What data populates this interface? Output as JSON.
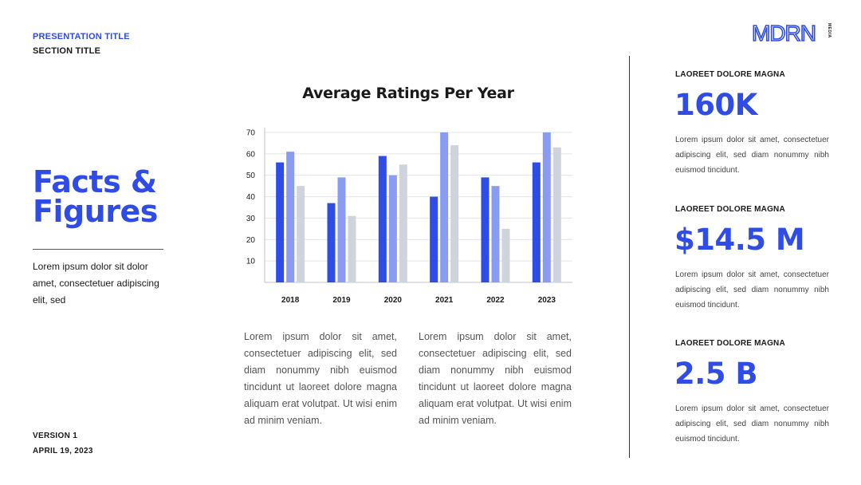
{
  "header": {
    "presentation_title": "PRESENTATION TITLE",
    "section_title": "SECTION TITLE",
    "logo_text": "MDRN",
    "logo_subtext": "MEDIA"
  },
  "left": {
    "heading_line1": "Facts &",
    "heading_line2": "Figures",
    "intro": "Lorem ipsum dolor sit dolor amet, consectetuer adipiscing elit, sed"
  },
  "footer": {
    "version": "VERSION 1",
    "date": "APRIL 19, 2023"
  },
  "chart_data": {
    "type": "bar",
    "title": "Average Ratings Per Year",
    "categories": [
      "2018",
      "2019",
      "2020",
      "2021",
      "2022",
      "2023"
    ],
    "series": [
      {
        "values": [
          56,
          37,
          59,
          40,
          49,
          56
        ],
        "color": "#2f4de6"
      },
      {
        "values": [
          61,
          49,
          50,
          70,
          45,
          70
        ],
        "color": "#8a9cf2"
      },
      {
        "values": [
          45,
          31,
          55,
          64,
          25,
          63
        ],
        "color": "#cfd3dc"
      }
    ],
    "ylim": [
      0,
      70
    ],
    "yticks": [
      10,
      20,
      30,
      40,
      50,
      60,
      70
    ],
    "grid": true
  },
  "body_text": {
    "col1": "Lorem ipsum dolor sit amet, consectetuer adipiscing elit, sed diam nonummy nibh euismod tincidunt ut laoreet dolore magna aliquam erat volutpat. Ut wisi enim ad minim veniam.",
    "col2": "Lorem ipsum dolor sit amet, consectetuer adipiscing elit, sed diam nonummy nibh euismod tincidunt ut laoreet dolore magna aliquam erat volutpat. Ut wisi enim ad minim veniam."
  },
  "stats": [
    {
      "label": "LAOREET DOLORE MAGNA",
      "value": "160K",
      "desc": "Lorem ipsum dolor sit amet, consectetuer adipiscing elit, sed diam nonummy nibh euismod tincidunt."
    },
    {
      "label": "LAOREET DOLORE MAGNA",
      "value": "$14.5 M",
      "desc": "Lorem ipsum dolor sit amet, consectetuer adipiscing elit, sed diam nonummy nibh euismod tincidunt."
    },
    {
      "label": "LAOREET DOLORE MAGNA",
      "value": "2.5 B",
      "desc": "Lorem ipsum dolor sit amet, consectetuer adipiscing elit, sed diam nonummy nibh euismod tincidunt."
    }
  ],
  "colors": {
    "accent": "#2f4de6",
    "text": "#1a1a1a"
  }
}
